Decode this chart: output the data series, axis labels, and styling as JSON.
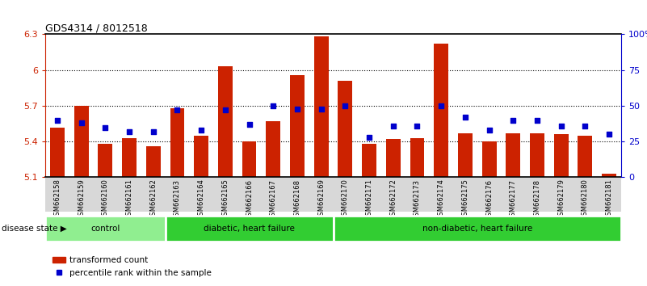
{
  "title": "GDS4314 / 8012518",
  "samples": [
    "GSM662158",
    "GSM662159",
    "GSM662160",
    "GSM662161",
    "GSM662162",
    "GSM662163",
    "GSM662164",
    "GSM662165",
    "GSM662166",
    "GSM662167",
    "GSM662168",
    "GSM662169",
    "GSM662170",
    "GSM662171",
    "GSM662172",
    "GSM662173",
    "GSM662174",
    "GSM662175",
    "GSM662176",
    "GSM662177",
    "GSM662178",
    "GSM662179",
    "GSM662180",
    "GSM662181"
  ],
  "bar_values": [
    5.52,
    5.7,
    5.38,
    5.43,
    5.36,
    5.68,
    5.45,
    6.03,
    5.4,
    5.57,
    5.96,
    6.28,
    5.91,
    5.38,
    5.42,
    5.43,
    6.22,
    5.47,
    5.4,
    5.47,
    5.47,
    5.46,
    5.45,
    5.13
  ],
  "dot_values": [
    40,
    38,
    35,
    32,
    32,
    47,
    33,
    47,
    37,
    50,
    48,
    48,
    50,
    28,
    36,
    36,
    50,
    42,
    33,
    40,
    40,
    36,
    36,
    30
  ],
  "bar_color": "#CC2200",
  "dot_color": "#0000CC",
  "ylim_left": [
    5.1,
    6.3
  ],
  "ylim_right": [
    0,
    100
  ],
  "yticks_left": [
    5.1,
    5.4,
    5.7,
    6.0,
    6.3
  ],
  "yticks_right": [
    0,
    25,
    50,
    75,
    100
  ],
  "ytick_labels_left": [
    "5.1",
    "5.4",
    "5.7",
    "6",
    "6.3"
  ],
  "ytick_labels_right": [
    "0",
    "25",
    "50",
    "75",
    "100%"
  ],
  "hlines": [
    5.4,
    5.7,
    6.0
  ],
  "groups": [
    {
      "label": "control",
      "start": 0,
      "end": 5,
      "color": "#90EE90"
    },
    {
      "label": "diabetic, heart failure",
      "start": 5,
      "end": 12,
      "color": "#32CD32"
    },
    {
      "label": "non-diabetic, heart failure",
      "start": 12,
      "end": 24,
      "color": "#32CD32"
    }
  ],
  "legend_bar_label": "transformed count",
  "legend_dot_label": "percentile rank within the sample",
  "disease_state_label": "disease state",
  "bar_width": 0.6
}
